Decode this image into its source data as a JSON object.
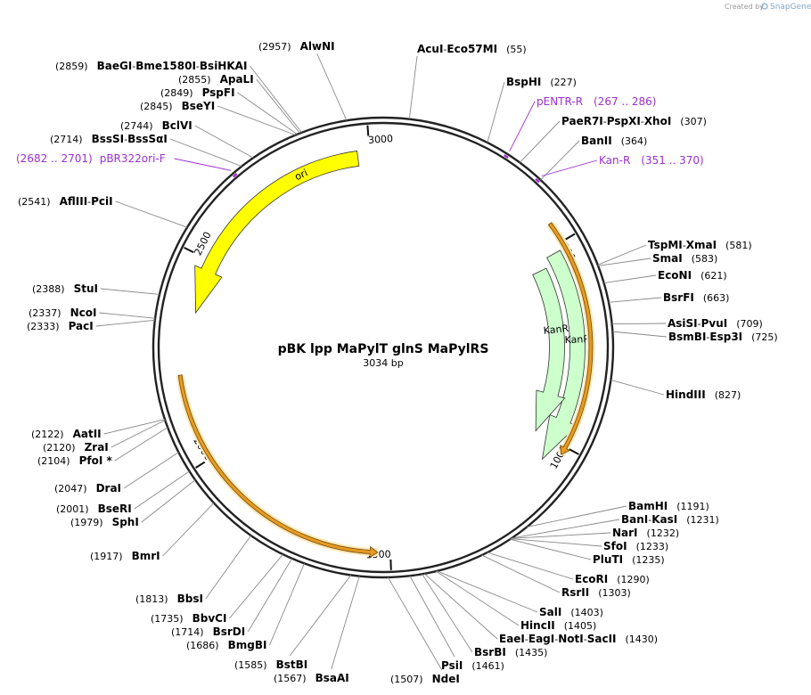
{
  "header": {
    "credit_prefix": "Created by",
    "credit_brand": "SnapGene"
  },
  "plasmid": {
    "name": "pBK lpp MaPylT glnS MaPylRS",
    "size_label": "3034 bp",
    "length": 3034
  },
  "ruler": [
    {
      "pos": 500,
      "label": "500"
    },
    {
      "pos": 1000,
      "label": "1000"
    },
    {
      "pos": 1500,
      "label": "1500"
    },
    {
      "pos": 2000,
      "label": "2000"
    },
    {
      "pos": 2500,
      "label": "2500"
    },
    {
      "pos": 3000,
      "label": "3000"
    }
  ],
  "features": [
    {
      "name": "ori",
      "label": "ori",
      "start": 2364,
      "end": 2970,
      "dir": "reverse",
      "color": "#ffff00"
    },
    {
      "name": "KanR-outer",
      "label": "KanR",
      "start": 516,
      "end": 1054,
      "dir": "forward",
      "color": "#ccffcc"
    },
    {
      "name": "KanR-inner",
      "label": "KanR",
      "start": 540,
      "end": 1000,
      "dir": "forward",
      "color": "#ccffcc"
    },
    {
      "name": "orange-right",
      "start": 450,
      "end": 1020,
      "dir": "forward",
      "color": "#f0a020"
    },
    {
      "name": "orange-left",
      "start": 1530,
      "end": 2210,
      "dir": "reverse",
      "color": "#f0a020"
    }
  ],
  "sites": [
    {
      "name": "AlwNI",
      "pos": "(2957)",
      "bp": 2957
    },
    {
      "name": "AcuI",
      "name2": "Eco57MI",
      "pos": "(55)",
      "bp": 55
    },
    {
      "name": "BaeGI",
      "name2": "Bme1580I",
      "name3": "BsiHKAI",
      "pos": "(2859)",
      "bp": 2859
    },
    {
      "name": "ApaLI",
      "pos": "(2855)",
      "bp": 2855
    },
    {
      "name": "PspFI",
      "pos": "(2849)",
      "bp": 2849
    },
    {
      "name": "BseYI",
      "pos": "(2845)",
      "bp": 2845
    },
    {
      "name": "BspHI",
      "pos": "(227)",
      "bp": 227
    },
    {
      "name": "PaeR7I",
      "name2": "PspXI",
      "name3": "XhoI",
      "pos": "(307)",
      "bp": 307
    },
    {
      "name": "BanII",
      "pos": "(364)",
      "bp": 364
    },
    {
      "name": "BclVI",
      "pos": "(2744)",
      "bp": 2744
    },
    {
      "name": "BssSI",
      "name2": "BssSαI",
      "pos": "(2714)",
      "bp": 2714
    },
    {
      "name": "AflIII",
      "name2": "PciI",
      "pos": "(2541)",
      "bp": 2541
    },
    {
      "name": "TspMI",
      "name2": "XmaI",
      "pos": "(581)",
      "bp": 581
    },
    {
      "name": "SmaI",
      "pos": "(583)",
      "bp": 583
    },
    {
      "name": "EcoNI",
      "pos": "(621)",
      "bp": 621
    },
    {
      "name": "BsrFI",
      "pos": "(663)",
      "bp": 663
    },
    {
      "name": "AsiSI",
      "name2": "PvuI",
      "pos": "(709)",
      "bp": 709
    },
    {
      "name": "BsmBI",
      "name2": "Esp3I",
      "pos": "(725)",
      "bp": 725
    },
    {
      "name": "StuI",
      "pos": "(2388)",
      "bp": 2388
    },
    {
      "name": "NcoI",
      "pos": "(2337)",
      "bp": 2337
    },
    {
      "name": "PacI",
      "pos": "(2333)",
      "bp": 2333
    },
    {
      "name": "HindIII",
      "pos": "(827)",
      "bp": 827
    },
    {
      "name": "AatII",
      "pos": "(2122)",
      "bp": 2122
    },
    {
      "name": "ZraI",
      "pos": "(2120)",
      "bp": 2120
    },
    {
      "name": "PfoI *",
      "pos": "(2104)",
      "bp": 2104
    },
    {
      "name": "DraI",
      "pos": "(2047)",
      "bp": 2047
    },
    {
      "name": "BseRI",
      "pos": "(2001)",
      "bp": 2001
    },
    {
      "name": "SphI",
      "pos": "(1979)",
      "bp": 1979
    },
    {
      "name": "BmrI",
      "pos": "(1917)",
      "bp": 1917
    },
    {
      "name": "BamHI",
      "pos": "(1191)",
      "bp": 1191
    },
    {
      "name": "BanI",
      "name2": "KasI",
      "pos": "(1231)",
      "bp": 1231
    },
    {
      "name": "NarI",
      "pos": "(1232)",
      "bp": 1232
    },
    {
      "name": "SfoI",
      "pos": "(1233)",
      "bp": 1233
    },
    {
      "name": "PluTI",
      "pos": "(1235)",
      "bp": 1235
    },
    {
      "name": "EcoRI",
      "pos": "(1290)",
      "bp": 1290
    },
    {
      "name": "RsrII",
      "pos": "(1303)",
      "bp": 1303
    },
    {
      "name": "SalI",
      "pos": "(1403)",
      "bp": 1403
    },
    {
      "name": "HincII",
      "pos": "(1405)",
      "bp": 1405
    },
    {
      "name": "EaeI",
      "name2": "EagI",
      "name3": "NotI",
      "name4": "SacII",
      "pos": "(1430)",
      "bp": 1430
    },
    {
      "name": "BsrBI",
      "pos": "(1435)",
      "bp": 1435
    },
    {
      "name": "PsiI",
      "pos": "(1461)",
      "bp": 1461
    },
    {
      "name": "NdeI",
      "pos": "(1507)",
      "bp": 1507
    },
    {
      "name": "BsaAI",
      "pos": "(1567)",
      "bp": 1567
    },
    {
      "name": "BstBI",
      "pos": "(1585)",
      "bp": 1585
    },
    {
      "name": "BmgBI",
      "pos": "(1686)",
      "bp": 1686
    },
    {
      "name": "BsrDI",
      "pos": "(1714)",
      "bp": 1714
    },
    {
      "name": "BbvCI",
      "pos": "(1735)",
      "bp": 1735
    },
    {
      "name": "BbsI",
      "pos": "(1813)",
      "bp": 1813
    }
  ],
  "primers": [
    {
      "name": "pENTR-R",
      "pos": "(267 .. 286)",
      "bp": 276
    },
    {
      "name": "Kan-R",
      "pos": "(351 .. 370)",
      "bp": 360
    },
    {
      "name": "pBR322ori-F",
      "pos": "(2682 .. 2701)",
      "bp": 2691
    }
  ]
}
